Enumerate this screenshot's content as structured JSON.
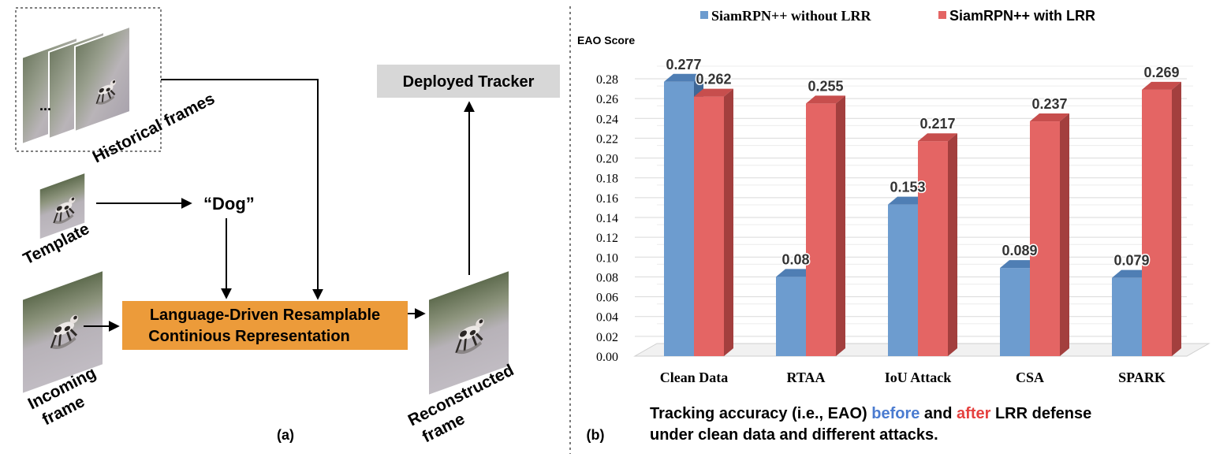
{
  "panel_a": {
    "label": "(a)",
    "historical_frames_label": "Historical frames",
    "ellipsis": "...",
    "template_label": "Template",
    "dog_label": "“Dog”",
    "incoming_frame_label": [
      "Incoming",
      "frame"
    ],
    "process_box": [
      "Language-Driven Resamplable",
      "Continious Representation"
    ],
    "reconstructed_label": [
      "Reconstructed",
      "frame"
    ],
    "deployed_tracker": "Deployed Tracker"
  },
  "panel_b": {
    "label": "(b)",
    "caption": {
      "line1": [
        "Tracking accuracy (i.e., EAO) ",
        "before",
        " and ",
        "after",
        " LRR defense"
      ],
      "line2": "under clean data and different attacks."
    }
  },
  "colors": {
    "without_lrr": "#6d9ccf",
    "with_lrr": "#e46564",
    "before_text": "#4a7bd0",
    "after_text": "#e5413f",
    "process_box": "#ec9b3a",
    "tracker_box": "#d7d7d7"
  },
  "chart_data": {
    "type": "bar",
    "ylabel": "EAO Score",
    "ylim": [
      0,
      0.28
    ],
    "yticks": [
      "0.00",
      "0.02",
      "0.04",
      "0.06",
      "0.08",
      "0.10",
      "0.12",
      "0.14",
      "0.16",
      "0.18",
      "0.20",
      "0.22",
      "0.24",
      "0.26",
      "0.28"
    ],
    "categories": [
      "Clean Data",
      "RTAA",
      "IoU Attack",
      "CSA",
      "SPARK"
    ],
    "series": [
      {
        "name": "SiamRPN++ without LRR",
        "values": [
          0.277,
          0.08,
          0.153,
          0.089,
          0.079
        ],
        "labels": [
          "0.277",
          "0.08",
          "0.153",
          "0.089",
          "0.079"
        ]
      },
      {
        "name": "SiamRPN++ with LRR",
        "values": [
          0.262,
          0.255,
          0.217,
          0.237,
          0.269
        ],
        "labels": [
          "0.262",
          "0.255",
          "0.217",
          "0.237",
          "0.269"
        ]
      }
    ],
    "legend_position": "top",
    "grid": true
  }
}
